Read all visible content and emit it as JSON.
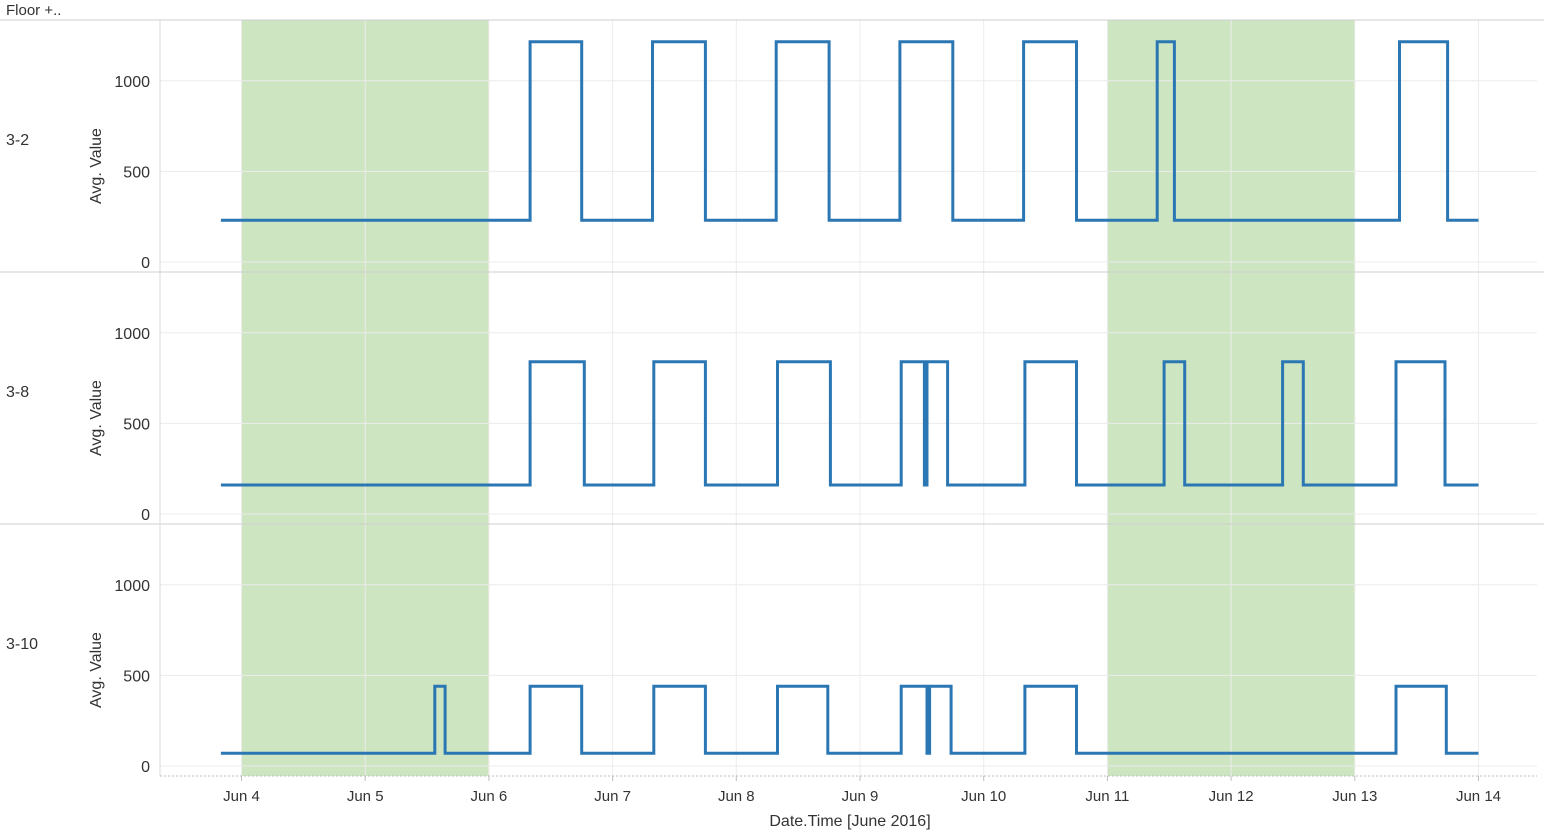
{
  "header": {
    "label": "Floor +.."
  },
  "chart_data": {
    "type": "line",
    "line_shape": "step",
    "title": "",
    "x_label": "Date.Time [June 2016]",
    "y_label": "Avg. Value",
    "x_range": [
      "2016-06-03 20:00",
      "2016-06-14 00:00"
    ],
    "x_ticks": [
      "Jun 4",
      "Jun 5",
      "Jun 6",
      "Jun 7",
      "Jun 8",
      "Jun 9",
      "Jun 10",
      "Jun 11",
      "Jun 12",
      "Jun 13",
      "Jun 14"
    ],
    "x_tick_dates": [
      "2016-06-04",
      "2016-06-05",
      "2016-06-06",
      "2016-06-07",
      "2016-06-08",
      "2016-06-09",
      "2016-06-10",
      "2016-06-11",
      "2016-06-12",
      "2016-06-13",
      "2016-06-14"
    ],
    "y_range": [
      0,
      1280
    ],
    "y_ticks": [
      0,
      500,
      1000
    ],
    "grid": true,
    "highlight_bands": [
      {
        "from": "2016-06-04 00:00",
        "to": "2016-06-06 00:00",
        "color": "#cde5c0"
      },
      {
        "from": "2016-06-11 00:00",
        "to": "2016-06-13 00:00",
        "color": "#cde5c0"
      }
    ],
    "series_color": "#2a77b4",
    "panels": [
      {
        "label": "3-2",
        "x": [
          "2016-06-03 20:00",
          "2016-06-06 08:00",
          "2016-06-06 18:00",
          "2016-06-07 07:45",
          "2016-06-07 18:00",
          "2016-06-08 07:45",
          "2016-06-08 18:00",
          "2016-06-09 07:45",
          "2016-06-09 18:00",
          "2016-06-10 07:45",
          "2016-06-10 18:00",
          "2016-06-11 09:40",
          "2016-06-11 13:00",
          "2016-06-13 08:40",
          "2016-06-13 18:00",
          "2016-06-14 00:00"
        ],
        "y": [
          230,
          1215,
          230,
          1215,
          230,
          1215,
          230,
          1215,
          230,
          1215,
          230,
          1215,
          230,
          1215,
          230,
          230
        ]
      },
      {
        "label": "3-8",
        "x": [
          "2016-06-03 20:00",
          "2016-06-06 08:00",
          "2016-06-06 18:30",
          "2016-06-07 08:00",
          "2016-06-07 18:00",
          "2016-06-08 08:00",
          "2016-06-08 18:15",
          "2016-06-09 08:00",
          "2016-06-09 12:30",
          "2016-06-09 13:00",
          "2016-06-09 17:00",
          "2016-06-10 08:00",
          "2016-06-10 18:00",
          "2016-06-11 11:00",
          "2016-06-11 15:00",
          "2016-06-12 10:00",
          "2016-06-12 14:00",
          "2016-06-13 08:00",
          "2016-06-13 17:30",
          "2016-06-14 00:00"
        ],
        "y": [
          160,
          840,
          160,
          840,
          160,
          840,
          160,
          840,
          160,
          840,
          160,
          840,
          160,
          840,
          160,
          840,
          160,
          840,
          160,
          160
        ]
      },
      {
        "label": "3-10",
        "x": [
          "2016-06-03 20:00",
          "2016-06-05 13:30",
          "2016-06-05 15:30",
          "2016-06-06 08:00",
          "2016-06-06 18:00",
          "2016-06-07 08:00",
          "2016-06-07 18:00",
          "2016-06-08 08:00",
          "2016-06-08 17:45",
          "2016-06-09 08:00",
          "2016-06-09 13:00",
          "2016-06-09 13:30",
          "2016-06-09 17:40",
          "2016-06-10 08:00",
          "2016-06-10 18:00",
          "2016-06-13 08:00",
          "2016-06-13 17:45",
          "2016-06-14 00:00"
        ],
        "y": [
          70,
          440,
          70,
          440,
          70,
          440,
          70,
          440,
          70,
          440,
          70,
          440,
          70,
          440,
          70,
          440,
          70,
          70
        ]
      }
    ]
  }
}
